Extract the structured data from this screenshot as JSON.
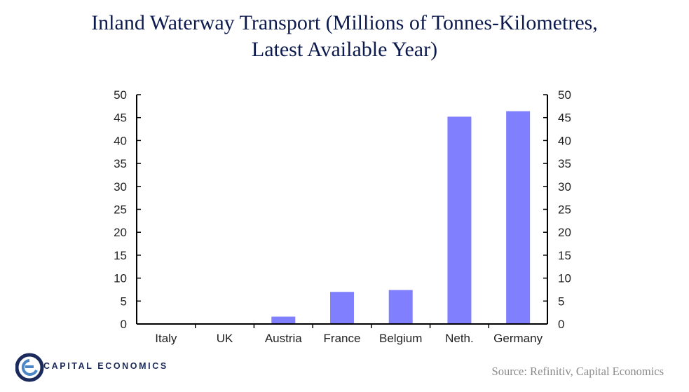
{
  "chart_data": {
    "type": "bar",
    "title_lines": [
      "Inland Waterway Transport (Millions of Tonnes-Kilometres,",
      "Latest Available Year)"
    ],
    "categories": [
      "Italy",
      "UK",
      "Austria",
      "France",
      "Belgium",
      "Neth.",
      "Germany"
    ],
    "values": [
      0.1,
      0.1,
      1.6,
      7.0,
      7.4,
      45.2,
      46.4
    ],
    "ylim": [
      0,
      50
    ],
    "yticks": [
      "0",
      "5",
      "10",
      "15",
      "20",
      "25",
      "30",
      "35",
      "40",
      "45",
      "50"
    ],
    "dual_y_axis": true,
    "grid": false,
    "bar_color": "#8080ff",
    "axis_color": "#000000"
  },
  "footer": {
    "logo_text": "CAPITAL ECONOMICS",
    "source": "Source: Refinitiv, Capital Economics"
  },
  "colors": {
    "title": "#0d1a4d",
    "logo_blue": "#1b2a5c",
    "logo_light": "#4a86c8"
  }
}
